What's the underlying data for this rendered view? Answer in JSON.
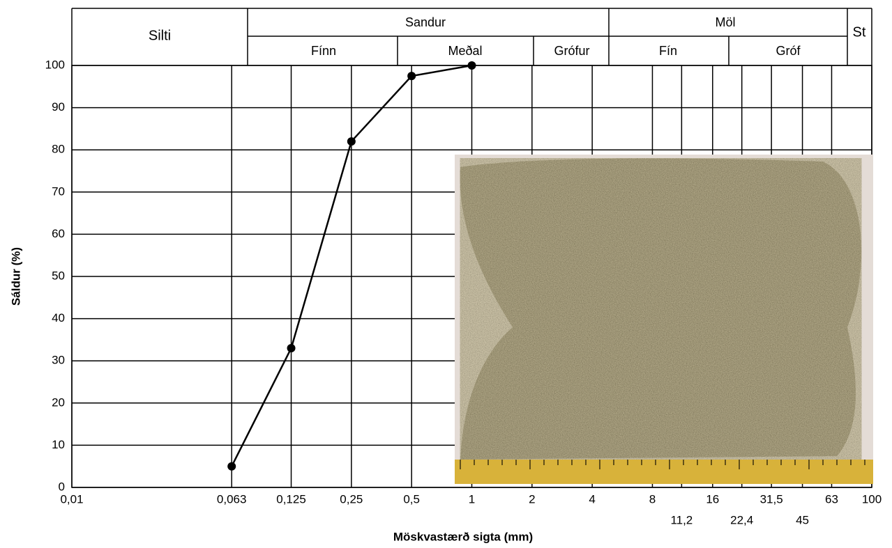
{
  "chart_data": {
    "type": "line",
    "xlabel": "Möskvastærð sigta (mm)",
    "ylabel": "Sáldur (%)",
    "header": {
      "silt": "Silti",
      "sand": "Sandur",
      "sand_fine": "Fínn",
      "sand_medium": "Meðal",
      "sand_coarse": "Grófur",
      "gravel": "Möl",
      "gravel_fine": "Fín",
      "gravel_coarse": "Gróf",
      "stones": "St"
    },
    "x": [
      0.063,
      0.125,
      0.25,
      0.5,
      1
    ],
    "values": [
      5,
      33,
      82,
      97.5,
      100
    ],
    "color": "#000000",
    "xscale": "log",
    "xlim": [
      0.01,
      100
    ],
    "ylim": [
      0,
      100
    ],
    "xticks": [
      {
        "value": 0.01,
        "label": "0,01"
      },
      {
        "value": 0.063,
        "label": "0,063"
      },
      {
        "value": 0.125,
        "label": "0,125"
      },
      {
        "value": 0.25,
        "label": "0,25"
      },
      {
        "value": 0.5,
        "label": "0,5"
      },
      1,
      2,
      4,
      8,
      {
        "value": 11.2,
        "label": "11,2"
      },
      16,
      {
        "value": 22.4,
        "label": "22,4"
      },
      {
        "value": 31.5,
        "label": "31,5"
      },
      {
        "value": 45,
        "label": "45"
      },
      63,
      100
    ],
    "yticks": [
      0,
      10,
      20,
      30,
      40,
      50,
      60,
      70,
      80,
      90,
      100
    ],
    "grid": true
  }
}
